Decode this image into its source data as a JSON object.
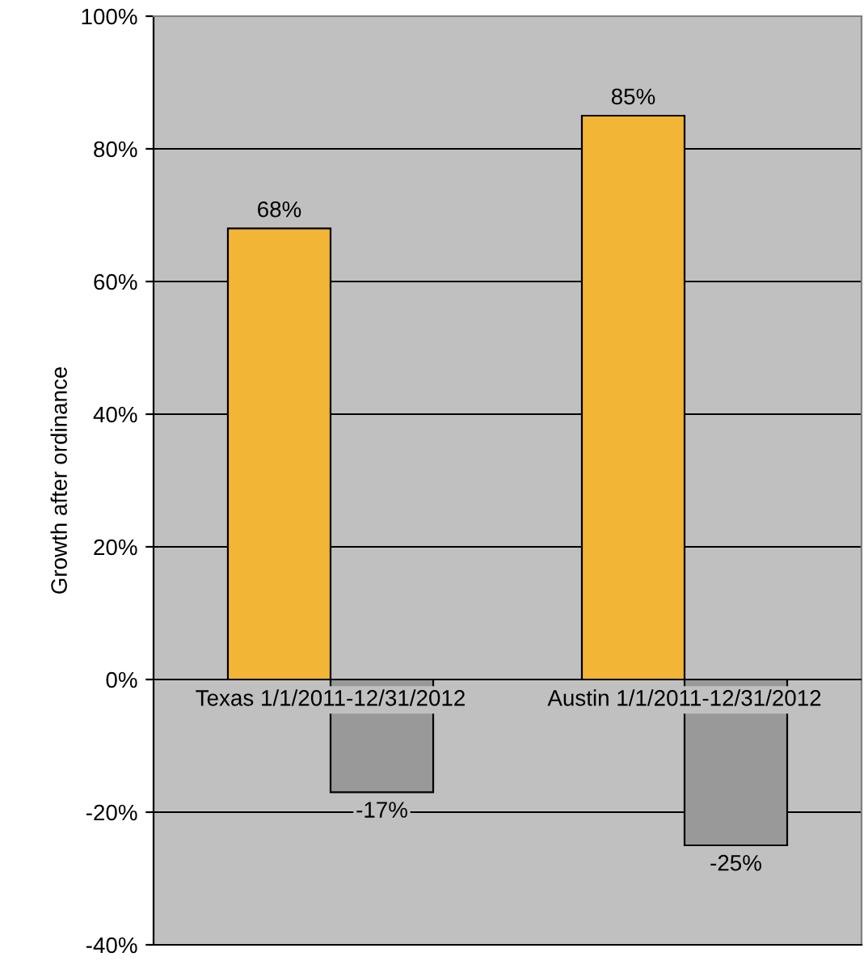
{
  "chart_data": {
    "type": "bar",
    "ylabel": "Growth after ordinance",
    "categories": [
      "Texas 1/1/2011-12/31/2012",
      "Austin 1/1/2011-12/31/2012"
    ],
    "series": [
      {
        "color": "#f2b535",
        "values": [
          68,
          85
        ],
        "value_labels": [
          "68%",
          "85%"
        ]
      },
      {
        "color": "#999999",
        "values": [
          -17,
          -25
        ],
        "value_labels": [
          "-17%",
          "-25%"
        ]
      }
    ],
    "ylim": [
      -40,
      100
    ],
    "yticks": [
      {
        "value": -40,
        "label": "-40%"
      },
      {
        "value": -20,
        "label": "-20%"
      },
      {
        "value": 0,
        "label": "0%"
      },
      {
        "value": 20,
        "label": "20%"
      },
      {
        "value": 40,
        "label": "40%"
      },
      {
        "value": 60,
        "label": "60%"
      },
      {
        "value": 80,
        "label": "80%"
      },
      {
        "value": 100,
        "label": "100%"
      }
    ],
    "grid": "y",
    "legend": false
  }
}
